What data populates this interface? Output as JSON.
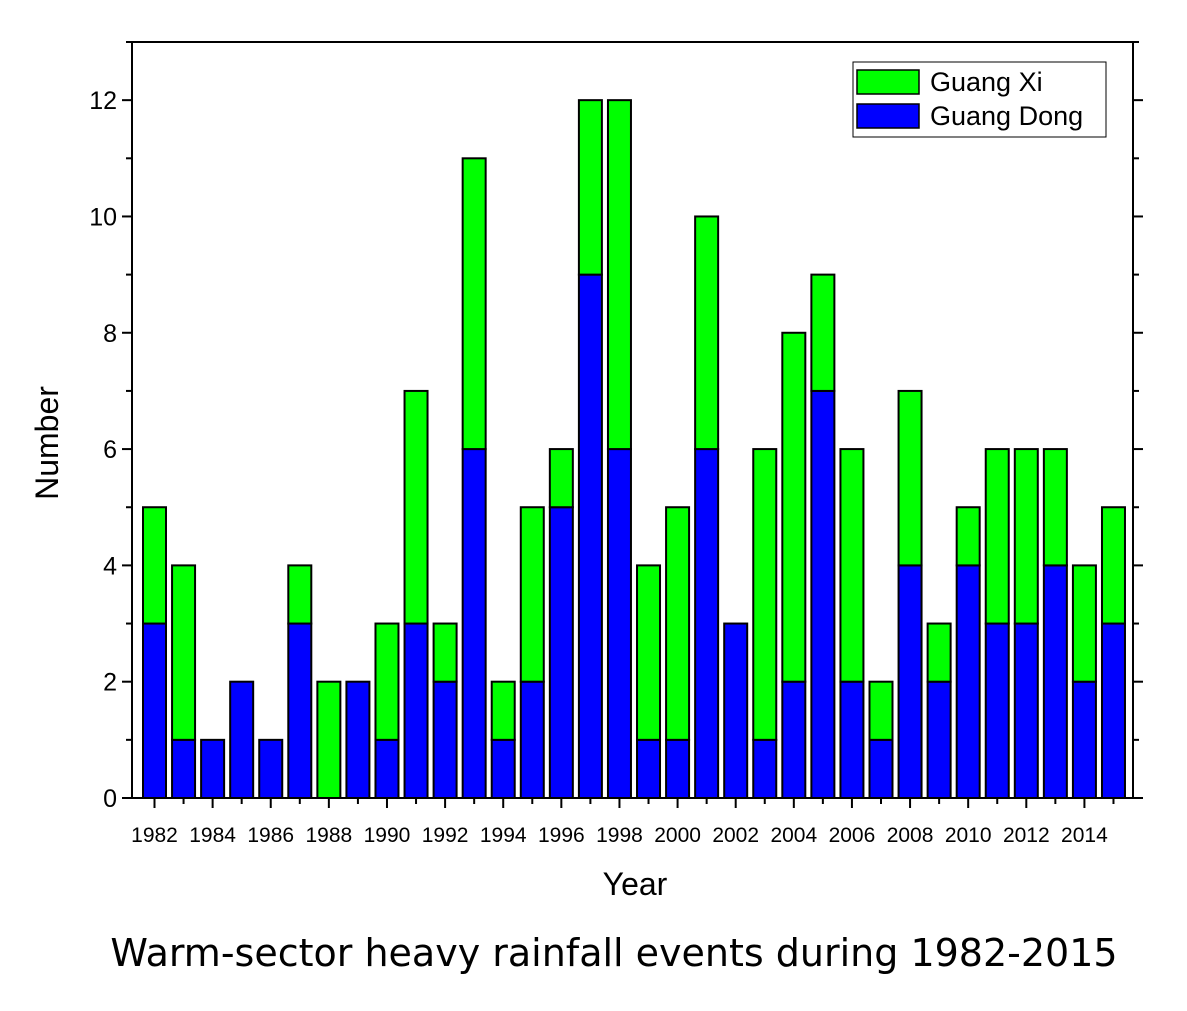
{
  "chart_data": {
    "type": "bar",
    "stacked": true,
    "x": [
      1982,
      1983,
      1984,
      1985,
      1986,
      1987,
      1988,
      1989,
      1990,
      1991,
      1992,
      1993,
      1994,
      1995,
      1996,
      1997,
      1998,
      1999,
      2000,
      2001,
      2002,
      2003,
      2004,
      2005,
      2006,
      2007,
      2008,
      2009,
      2010,
      2011,
      2012,
      2013,
      2014,
      2015
    ],
    "x_tick_labels": [
      "1982",
      "1984",
      "1986",
      "1988",
      "1990",
      "1992",
      "1994",
      "1996",
      "1998",
      "2000",
      "2002",
      "2004",
      "2006",
      "2008",
      "2010",
      "2012",
      "2014"
    ],
    "series": [
      {
        "name": "Guang Dong",
        "color": "#0000ff",
        "values": [
          3,
          1,
          1,
          2,
          1,
          3,
          0,
          2,
          1,
          3,
          2,
          6,
          1,
          2,
          5,
          9,
          6,
          1,
          1,
          6,
          3,
          1,
          2,
          7,
          2,
          1,
          4,
          2,
          4,
          3,
          3,
          4,
          2,
          3
        ]
      },
      {
        "name": "Guang Xi",
        "color": "#00ff00",
        "values": [
          2,
          3,
          0,
          0,
          0,
          1,
          2,
          0,
          2,
          4,
          1,
          5,
          1,
          3,
          1,
          3,
          6,
          3,
          4,
          4,
          0,
          5,
          6,
          2,
          4,
          1,
          3,
          1,
          1,
          3,
          3,
          2,
          2,
          2
        ]
      }
    ],
    "xlabel": "Year",
    "ylabel": "Number",
    "ylim": [
      0,
      13
    ],
    "y_ticks": [
      0,
      2,
      4,
      6,
      8,
      10,
      12
    ],
    "legend": {
      "position": "top-right",
      "order": [
        "Guang Xi",
        "Guang Dong"
      ]
    },
    "grid": false
  },
  "caption": "Warm-sector heavy rainfall events during 1982-2015"
}
